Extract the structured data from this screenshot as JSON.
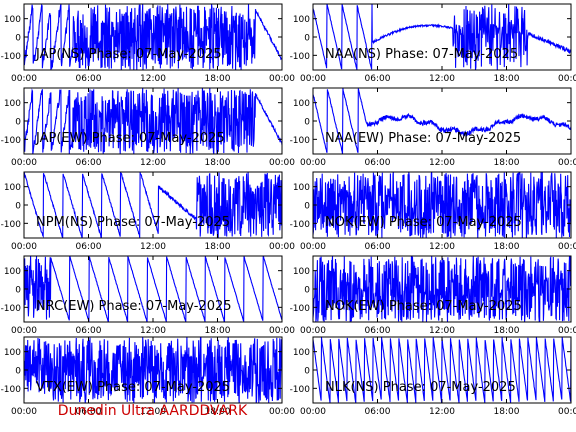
{
  "footer": "Dunedin Ultra AARDDVARK",
  "colors": {
    "trace": "#0000ff",
    "axis": "#000000",
    "footer": "#cc0000",
    "background": "#ffffff"
  },
  "chart_data": [
    {
      "type": "line",
      "title": "JAP(NS) Phase: 07-May-2025",
      "pattern": "dense_late_wrap",
      "x_ticks": [
        "00:00",
        "06:00",
        "12:00",
        "18:00",
        "00:00"
      ],
      "xlim": [
        0,
        24
      ],
      "y_ticks": [
        100,
        0,
        -100
      ],
      "ylim": [
        -180,
        180
      ]
    },
    {
      "type": "line",
      "title": "NAA(NS) Phase: 07-May-2025",
      "pattern": "slopes_then_noise",
      "x_ticks": [
        "00:00",
        "06:00",
        "12:00",
        "18:00",
        "00:00"
      ],
      "xlim": [
        0,
        24
      ],
      "y_ticks": [
        100,
        0,
        -100
      ],
      "ylim": [
        -180,
        180
      ]
    },
    {
      "type": "line",
      "title": "JAP(EW) Phase: 07-May-2025",
      "pattern": "dense_late_wrap",
      "x_ticks": [
        "00:00",
        "06:00",
        "12:00",
        "18:00",
        "00:00"
      ],
      "xlim": [
        0,
        24
      ],
      "y_ticks": [
        100,
        0,
        -100
      ],
      "ylim": [
        -180,
        180
      ]
    },
    {
      "type": "line",
      "title": "NAA(EW) Phase: 07-May-2025",
      "pattern": "wavy_drift",
      "x_ticks": [
        "00:00",
        "06:00",
        "12:00",
        "18:00",
        "00:00"
      ],
      "xlim": [
        0,
        24
      ],
      "y_ticks": [
        100,
        0,
        -100
      ],
      "ylim": [
        -180,
        180
      ]
    },
    {
      "type": "line",
      "title": "NPM(NS) Phase: 07-May-2025",
      "pattern": "wraps_then_dense",
      "x_ticks": [
        "00:00",
        "06:00",
        "12:00",
        "18:00",
        "00:00"
      ],
      "xlim": [
        0,
        24
      ],
      "y_ticks": [
        100,
        0,
        -100
      ],
      "ylim": [
        -180,
        180
      ]
    },
    {
      "type": "line",
      "title": "NOK(EW) Phase: 07-May-2025",
      "pattern": "noise",
      "x_ticks": [
        "00:00",
        "06:00",
        "12:00",
        "18:00",
        "00:00"
      ],
      "xlim": [
        0,
        24
      ],
      "y_ticks": [
        100,
        0,
        -100
      ],
      "ylim": [
        -180,
        180
      ]
    },
    {
      "type": "line",
      "title": "NRC(EW) Phase: 07-May-2025",
      "pattern": "sawtooth_slow",
      "x_ticks": [
        "00:00",
        "06:00",
        "12:00",
        "18:00",
        "00:00"
      ],
      "xlim": [
        0,
        24
      ],
      "y_ticks": [
        100,
        0,
        -100
      ],
      "ylim": [
        -180,
        180
      ]
    },
    {
      "type": "line",
      "title": "NOK(EW) Phase: 07-May-2025",
      "pattern": "noise",
      "x_ticks": [
        "00:00",
        "06:00",
        "12:00",
        "18:00",
        "00:00"
      ],
      "xlim": [
        0,
        24
      ],
      "y_ticks": [
        100,
        0,
        -100
      ],
      "ylim": [
        -180,
        180
      ]
    },
    {
      "type": "line",
      "title": "VTX(EW) Phase: 07-May-2025",
      "pattern": "solid_noise",
      "x_ticks": [
        "00:00",
        "06:00",
        "12:00",
        "18:00",
        "00:00"
      ],
      "xlim": [
        0,
        24
      ],
      "y_ticks": [
        100,
        0,
        -100
      ],
      "ylim": [
        -180,
        180
      ]
    },
    {
      "type": "line",
      "title": "NLK(NS) Phase: 07-May-2025",
      "pattern": "sawtooth_fast",
      "x_ticks": [
        "00:00",
        "06:00",
        "12:00",
        "18:00",
        "00:00"
      ],
      "xlim": [
        0,
        24
      ],
      "y_ticks": [
        100,
        0,
        -100
      ],
      "ylim": [
        -180,
        180
      ]
    }
  ]
}
